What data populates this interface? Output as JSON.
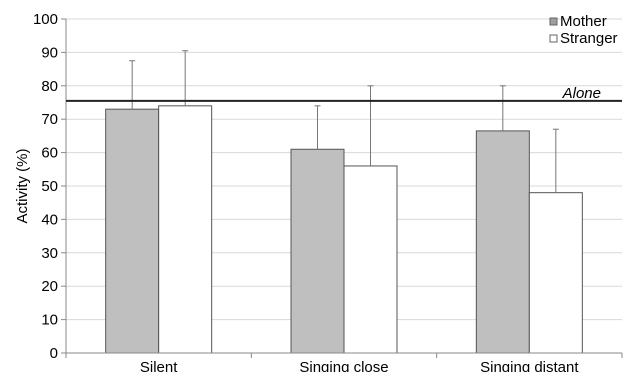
{
  "chart_data": {
    "type": "bar",
    "categories": [
      "Silent",
      "Singing close",
      "Singing distant"
    ],
    "series": [
      {
        "name": "Mother",
        "values": [
          73,
          61,
          66.5
        ],
        "errors": [
          14.5,
          13,
          13.5
        ],
        "color": "#bfbfbf"
      },
      {
        "name": "Stranger",
        "values": [
          74,
          56,
          48
        ],
        "errors": [
          16.5,
          24,
          19
        ],
        "color": "#ffffff"
      }
    ],
    "ylabel": "Activity (%)",
    "ylim": [
      0,
      100
    ],
    "yticks": [
      "0",
      "10",
      "20",
      "30",
      "40",
      "50",
      "60",
      "70",
      "80",
      "90",
      "100"
    ],
    "grid": true,
    "legend_position": "top-right",
    "reference_line": {
      "label": "Alone",
      "value": 75.5
    }
  }
}
